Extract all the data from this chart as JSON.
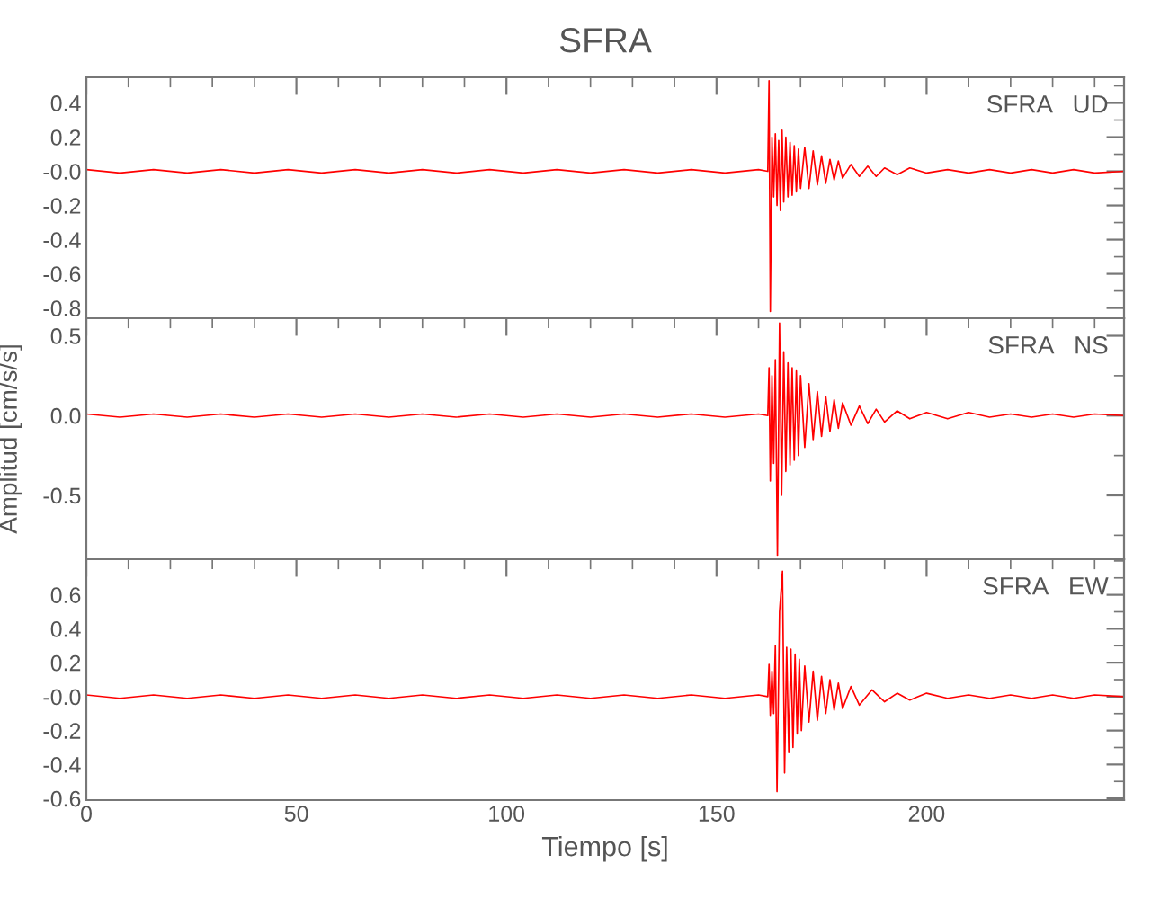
{
  "chart_data": [
    {
      "type": "line",
      "title": "SFRA",
      "annotations": [
        "SFRA   UD"
      ],
      "xlim": [
        0,
        247
      ],
      "xticks": [
        0,
        50,
        100,
        150,
        200
      ],
      "ylim": [
        -0.86,
        0.55
      ],
      "yticks": [
        {
          "value": 0.4,
          "label": "0.4"
        },
        {
          "value": 0.2,
          "label": "0.2"
        },
        {
          "value": 0,
          "label": "-0.0"
        },
        {
          "value": -0.2,
          "label": "-0.2"
        },
        {
          "value": -0.4,
          "label": "-0.4"
        },
        {
          "value": -0.6,
          "label": "-0.6"
        },
        {
          "value": -0.8,
          "label": "-0.8"
        }
      ],
      "tick_labels": "y",
      "grid": false,
      "series": [
        {
          "color": "#ff0000",
          "x": [
            0,
            8,
            16,
            24,
            32,
            40,
            48,
            56,
            64,
            72,
            80,
            88,
            96,
            104,
            112,
            120,
            128,
            136,
            144,
            152,
            160,
            162.2,
            162.5,
            162.8,
            163.2,
            163.6,
            164,
            164.4,
            164.8,
            165.2,
            165.6,
            166,
            166.5,
            167,
            167.5,
            168,
            168.5,
            169,
            169.5,
            170,
            171,
            172,
            173,
            174,
            175,
            176,
            177,
            178,
            179,
            180,
            182,
            184,
            186,
            188,
            190,
            193,
            196,
            200,
            205,
            210,
            215,
            220,
            225,
            230,
            235,
            240,
            247
          ],
          "values": [
            0.01,
            -0.01,
            0.01,
            -0.01,
            0.01,
            -0.01,
            0.01,
            -0.01,
            0.01,
            -0.01,
            0.01,
            -0.01,
            0.01,
            -0.01,
            0.01,
            -0.01,
            0.01,
            -0.01,
            0.01,
            -0.01,
            0.01,
            0.0,
            0.53,
            -0.82,
            0.2,
            -0.15,
            0.22,
            -0.2,
            0.18,
            -0.23,
            0.24,
            -0.18,
            0.2,
            -0.15,
            0.17,
            -0.14,
            0.15,
            -0.12,
            0.13,
            -0.1,
            0.14,
            -0.1,
            0.12,
            -0.08,
            0.09,
            -0.07,
            0.07,
            -0.05,
            0.06,
            -0.04,
            0.04,
            -0.03,
            0.03,
            -0.03,
            0.02,
            -0.02,
            0.02,
            -0.01,
            0.01,
            -0.01,
            0.01,
            -0.01,
            0.01,
            -0.01,
            0.01,
            -0.01,
            0.0
          ]
        }
      ]
    },
    {
      "type": "line",
      "ylabel": "Amplitud [cm/s/s]",
      "annotations": [
        "SFRA   NS"
      ],
      "xlim": [
        0,
        247
      ],
      "xticks": [
        0,
        50,
        100,
        150,
        200
      ],
      "ylim": [
        -0.9,
        0.61
      ],
      "yticks": [
        0.5,
        {
          "value": 0,
          "label": "0.0"
        },
        -0.5
      ],
      "tick_labels": "y",
      "grid": false,
      "series": [
        {
          "color": "#ff0000",
          "x": [
            0,
            8,
            16,
            24,
            32,
            40,
            48,
            56,
            64,
            72,
            80,
            88,
            96,
            104,
            112,
            120,
            128,
            136,
            144,
            152,
            160,
            162.2,
            162.5,
            162.8,
            163.2,
            163.6,
            164,
            164.5,
            165,
            165.5,
            166,
            166.5,
            167,
            167.5,
            168,
            168.5,
            169,
            169.5,
            170,
            171,
            172,
            173,
            174,
            175,
            176,
            177,
            178,
            179,
            180,
            182,
            184,
            186,
            188,
            190,
            193,
            196,
            200,
            205,
            210,
            215,
            220,
            225,
            230,
            235,
            240,
            247
          ],
          "values": [
            0.01,
            -0.01,
            0.01,
            -0.01,
            0.01,
            -0.01,
            0.01,
            -0.01,
            0.01,
            -0.01,
            0.01,
            -0.01,
            0.01,
            -0.01,
            0.01,
            -0.01,
            0.01,
            -0.01,
            0.01,
            -0.01,
            0.01,
            0.0,
            0.3,
            -0.41,
            0.25,
            -0.3,
            0.35,
            -0.88,
            0.58,
            -0.5,
            0.4,
            -0.35,
            0.33,
            -0.31,
            0.3,
            -0.28,
            0.28,
            -0.25,
            0.25,
            -0.2,
            0.2,
            -0.15,
            0.15,
            -0.13,
            0.12,
            -0.1,
            0.1,
            -0.08,
            0.08,
            -0.06,
            0.06,
            -0.05,
            0.04,
            -0.04,
            0.03,
            -0.02,
            0.02,
            -0.02,
            0.02,
            -0.01,
            0.01,
            -0.01,
            0.01,
            -0.01,
            0.01,
            0.0
          ]
        }
      ]
    },
    {
      "type": "line",
      "xlabel": "Tiempo [s]",
      "annotations": [
        "SFRA   EW"
      ],
      "xlim": [
        0,
        247
      ],
      "xticks": [
        0,
        50,
        100,
        150,
        200
      ],
      "ylim": [
        -0.61,
        0.81
      ],
      "yticks": [
        {
          "value": 0.6,
          "label": "0.6"
        },
        {
          "value": 0.4,
          "label": "0.4"
        },
        {
          "value": 0.2,
          "label": "0.2"
        },
        {
          "value": 0,
          "label": "-0.0"
        },
        {
          "value": -0.2,
          "label": "-0.2"
        },
        {
          "value": -0.4,
          "label": "-0.4"
        },
        {
          "value": -0.6,
          "label": "-0.6"
        }
      ],
      "grid": false,
      "series": [
        {
          "color": "#ff0000",
          "x": [
            0,
            8,
            16,
            24,
            32,
            40,
            48,
            56,
            64,
            72,
            80,
            88,
            96,
            104,
            112,
            120,
            128,
            136,
            144,
            152,
            160,
            162.2,
            162.5,
            162.8,
            163.2,
            163.6,
            164,
            164.4,
            165,
            165.7,
            166.2,
            166.7,
            167.2,
            167.7,
            168.2,
            168.7,
            169.2,
            169.7,
            170.2,
            171,
            172,
            173,
            174,
            175,
            176,
            177,
            178,
            179,
            180,
            182,
            184,
            187,
            190,
            193,
            196,
            200,
            205,
            210,
            215,
            220,
            225,
            230,
            235,
            240,
            247
          ],
          "values": [
            0.01,
            -0.01,
            0.01,
            -0.01,
            0.01,
            -0.01,
            0.01,
            -0.01,
            0.01,
            -0.01,
            0.01,
            -0.01,
            0.01,
            -0.01,
            0.01,
            -0.01,
            0.01,
            -0.01,
            0.01,
            -0.01,
            0.01,
            0.0,
            0.19,
            -0.11,
            0.15,
            -0.1,
            0.3,
            -0.56,
            0.5,
            0.74,
            -0.45,
            0.29,
            -0.33,
            0.28,
            -0.3,
            0.25,
            -0.22,
            0.22,
            -0.2,
            0.18,
            -0.15,
            0.15,
            -0.14,
            0.12,
            -0.1,
            0.1,
            -0.08,
            0.08,
            -0.07,
            0.06,
            -0.05,
            0.04,
            -0.03,
            0.02,
            -0.02,
            0.02,
            -0.01,
            0.01,
            -0.01,
            0.01,
            -0.01,
            0.01,
            -0.01,
            0.01,
            0.0
          ]
        }
      ]
    }
  ]
}
